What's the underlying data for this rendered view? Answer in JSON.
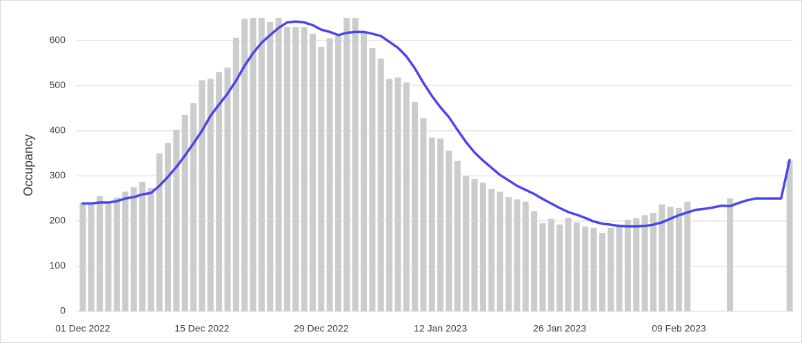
{
  "chart_data": {
    "type": "bar",
    "y_label": "Occupancy",
    "categories": [
      "01 Dec 2022",
      null,
      null,
      null,
      null,
      null,
      null,
      null,
      null,
      null,
      null,
      null,
      null,
      null,
      "15 Dec 2022",
      null,
      null,
      null,
      null,
      null,
      null,
      null,
      null,
      null,
      null,
      null,
      null,
      null,
      "29 Dec 2022",
      null,
      null,
      null,
      null,
      null,
      null,
      null,
      null,
      null,
      null,
      null,
      null,
      null,
      "12 Jan 2023",
      null,
      null,
      null,
      null,
      null,
      null,
      null,
      null,
      null,
      null,
      null,
      null,
      null,
      "26 Jan 2023",
      null,
      null,
      null,
      null,
      null,
      null,
      null,
      null,
      null,
      null,
      null,
      null,
      null,
      "09 Feb 2023",
      null,
      null,
      null,
      null,
      null,
      null,
      null,
      null,
      null,
      null,
      null,
      null,
      null
    ],
    "series": [
      {
        "type": "bar",
        "color": "#cccccc",
        "values": [
          240,
          240,
          255,
          243,
          252,
          265,
          275,
          287,
          273,
          350,
          373,
          402,
          435,
          461,
          512,
          515,
          530,
          540,
          606,
          648,
          650,
          650,
          641,
          650,
          630,
          630,
          630,
          615,
          586,
          605,
          610,
          650,
          650,
          620,
          583,
          560,
          515,
          518,
          507,
          464,
          428,
          385,
          383,
          356,
          333,
          300,
          293,
          285,
          271,
          265,
          253,
          248,
          243,
          222,
          195,
          205,
          192,
          207,
          197,
          188,
          185,
          174,
          185,
          188,
          203,
          206,
          213,
          218,
          237,
          232,
          229,
          243,
          null,
          null,
          null,
          null,
          250,
          null,
          null,
          null,
          null,
          null,
          null,
          333
        ]
      },
      {
        "type": "line",
        "color": "#4a45ee",
        "values": [
          239,
          239,
          241,
          241,
          244,
          250,
          253,
          259,
          262,
          278,
          298,
          320,
          345,
          372,
          400,
          433,
          458,
          482,
          511,
          544,
          572,
          595,
          612,
          628,
          640,
          642,
          640,
          634,
          624,
          619,
          612,
          617,
          619,
          619,
          615,
          610,
          597,
          584,
          565,
          538,
          506,
          477,
          452,
          430,
          402,
          375,
          352,
          334,
          318,
          302,
          290,
          278,
          269,
          260,
          249,
          239,
          229,
          220,
          214,
          207,
          199,
          194,
          192,
          189,
          188,
          188,
          189,
          192,
          197,
          205,
          213,
          219,
          225,
          227,
          230,
          234,
          233,
          240,
          246,
          250,
          250,
          250,
          250,
          335
        ]
      }
    ],
    "ylim": [
      0,
      650
    ],
    "yticks": [
      0,
      100,
      200,
      300,
      400,
      500,
      600
    ],
    "grid": true
  }
}
